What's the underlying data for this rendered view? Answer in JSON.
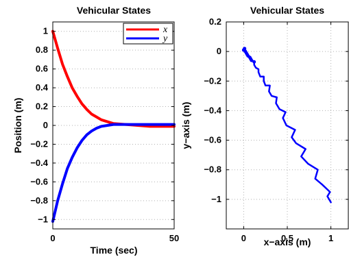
{
  "chart_data": [
    {
      "type": "line",
      "title": "Vehicular States",
      "xlabel": "Time (sec)",
      "ylabel": "Position (m)",
      "xlim": [
        0,
        50
      ],
      "ylim": [
        -1.1,
        1.1
      ],
      "xticks": [
        0,
        50
      ],
      "yticks": [
        1,
        0.8,
        0.6,
        0.4,
        0.2,
        0,
        -0.2,
        -0.4,
        -0.6,
        -0.8,
        -1
      ],
      "ytick_labels": [
        "1",
        "0.8",
        "0.6",
        "0.4",
        "0.2",
        "0",
        "−0.2",
        "−0.4",
        "−0.6",
        "−0.8",
        "−1"
      ],
      "grid": true,
      "legend": "top-right",
      "series": [
        {
          "name": "x",
          "color": "#ff0000",
          "x": [
            0,
            2,
            4,
            6,
            8,
            10,
            12,
            14,
            16,
            18,
            20,
            25,
            30,
            35,
            40,
            45,
            50
          ],
          "y": [
            1.0,
            0.82,
            0.65,
            0.52,
            0.4,
            0.31,
            0.23,
            0.17,
            0.12,
            0.09,
            0.06,
            0.02,
            0.01,
            0.0,
            -0.01,
            -0.01,
            -0.01
          ]
        },
        {
          "name": "y",
          "color": "#0000ff",
          "x": [
            0,
            2,
            4,
            6,
            8,
            10,
            12,
            14,
            16,
            18,
            20,
            25,
            30,
            35,
            40,
            45,
            50
          ],
          "y": [
            -1.02,
            -0.8,
            -0.62,
            -0.46,
            -0.34,
            -0.24,
            -0.16,
            -0.1,
            -0.06,
            -0.03,
            -0.01,
            0.01,
            0.01,
            0.01,
            0.01,
            0.01,
            0.01
          ]
        }
      ]
    },
    {
      "type": "line",
      "title": "Vehicular States",
      "xlabel": "x−axis (m)",
      "ylabel": "y−axis (m)",
      "xlim": [
        -0.2,
        1.2
      ],
      "ylim": [
        -1.2,
        0.2
      ],
      "xticks": [
        0,
        0.5,
        1
      ],
      "xtick_labels": [
        "0",
        "0.5",
        "1"
      ],
      "yticks": [
        0.2,
        0,
        -0.2,
        -0.4,
        -0.6,
        -0.8,
        -1
      ],
      "ytick_labels": [
        "0.2",
        "0",
        "−0.2",
        "−0.4",
        "−0.6",
        "−0.8",
        "−1"
      ],
      "grid": true,
      "series": [
        {
          "color": "#0000ff",
          "x": [
            1.0,
            0.96,
            0.99,
            0.9,
            0.82,
            0.85,
            0.74,
            0.66,
            0.71,
            0.6,
            0.55,
            0.59,
            0.49,
            0.45,
            0.48,
            0.41,
            0.37,
            0.38,
            0.32,
            0.29,
            0.3,
            0.25,
            0.23,
            0.23,
            0.19,
            0.17,
            0.17,
            0.14,
            0.12,
            0.12,
            0.09,
            0.08,
            0.07,
            0.05,
            0.04,
            0.03,
            0.02,
            0.01,
            0.0,
            0.01,
            0.0
          ],
          "y": [
            -1.02,
            -0.98,
            -0.95,
            -0.9,
            -0.86,
            -0.8,
            -0.76,
            -0.71,
            -0.66,
            -0.62,
            -0.58,
            -0.53,
            -0.5,
            -0.45,
            -0.41,
            -0.39,
            -0.35,
            -0.31,
            -0.3,
            -0.27,
            -0.23,
            -0.23,
            -0.2,
            -0.17,
            -0.17,
            -0.14,
            -0.12,
            -0.11,
            -0.09,
            -0.07,
            -0.06,
            -0.05,
            -0.04,
            -0.03,
            -0.02,
            -0.01,
            0.0,
            0.01,
            0.01,
            0.02,
            0.01
          ]
        }
      ]
    }
  ]
}
